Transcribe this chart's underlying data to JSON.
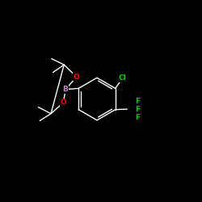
{
  "background_color": "#000000",
  "bond_color": "#ffffff",
  "atom_colors": {
    "B": "#cc88cc",
    "O": "#ff0000",
    "Cl": "#00cc00",
    "F": "#00cc00",
    "C": "#ffffff"
  },
  "lw": 1.0,
  "fontsize": 6.5
}
